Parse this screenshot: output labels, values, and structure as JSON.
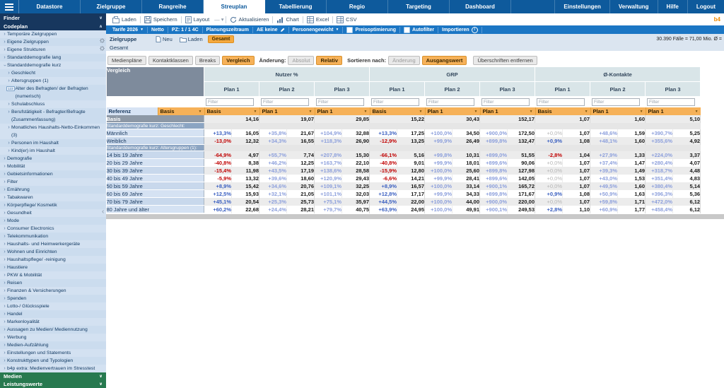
{
  "nav": {
    "tabs": [
      {
        "label": "Datastore",
        "active": false
      },
      {
        "label": "Zielgruppe",
        "active": false
      },
      {
        "label": "Rangreihe",
        "active": false
      },
      {
        "label": "Streuplan",
        "active": true
      },
      {
        "label": "Tabellierung",
        "active": false
      },
      {
        "label": "Regio",
        "active": false
      },
      {
        "label": "Targeting",
        "active": false
      },
      {
        "label": "Dashboard",
        "active": false
      }
    ],
    "right": [
      "Einstellungen",
      "Verwaltung",
      "Hilfe",
      "Logout"
    ]
  },
  "toolbar": {
    "buttons": [
      {
        "label": "Laden",
        "icon": "load-icon"
      },
      {
        "label": "Speichern",
        "icon": "save-icon"
      },
      {
        "label": "Layout",
        "icon": "layout-icon",
        "suffix": "— ▾"
      },
      {
        "label": "Aktualisieren",
        "icon": "refresh-icon"
      },
      {
        "label": "Chart",
        "icon": "chart-icon"
      },
      {
        "label": "Excel",
        "icon": "excel-icon"
      },
      {
        "label": "CSV",
        "icon": "csv-icon"
      }
    ],
    "brand": "b4"
  },
  "bluebar": {
    "items": [
      {
        "label": "Tarife 2026",
        "arrow": true
      },
      {
        "label": "Netto"
      },
      {
        "label": "PZ: 1 / 1 4C"
      },
      {
        "label": "Planungszeitraum"
      },
      {
        "label": "AE keine",
        "pencil": true
      },
      {
        "label": "Personengewicht",
        "arrow": true
      },
      {
        "label": "Preisoptimierung",
        "checkbox": true
      },
      {
        "label": "Autofilter",
        "checkbox": true
      },
      {
        "label": "Importieren",
        "info": true
      }
    ]
  },
  "zielgruppe": {
    "label": "Zielgruppe",
    "new_label": "Neu",
    "load_label": "Laden",
    "chip": "Gesamt",
    "stats": "30.390 Fälle = 71,00 Mio. Ø =",
    "current": "Gesamt"
  },
  "table_toolbar": {
    "buttons": [
      {
        "label": "Medienpläne"
      },
      {
        "label": "Kontaktklassen"
      },
      {
        "label": "Breaks"
      },
      {
        "label": "Vergleich",
        "active": true
      }
    ],
    "aenderung_label": "Änderung:",
    "aenderung_options": [
      {
        "label": "Absolut",
        "muted": true
      },
      {
        "label": "Relativ",
        "active": true
      }
    ],
    "sort_label": "Sortieren nach:",
    "sort_options": [
      {
        "label": "Änderung",
        "muted": true
      },
      {
        "label": "Ausgangswert",
        "active": true
      }
    ],
    "remove_headers": "Überschriften entfernen"
  },
  "table": {
    "corner": "Vergleich",
    "groups": [
      {
        "label": "Nutzer %"
      },
      {
        "label": "GRP"
      },
      {
        "label": "Ø-Kontakte"
      }
    ],
    "plans": [
      "Plan 1",
      "Plan 2",
      "Plan 3",
      "Plan 1",
      "Plan 2",
      "Plan 3",
      "Plan 1",
      "Plan 2",
      "Plan 3"
    ],
    "filter_placeholder": "Filter",
    "referenz_label": "Referenz",
    "referenz_main": "Basis",
    "references": [
      "Basis",
      "Plan 1",
      "Plan 1",
      "Basis",
      "Plan 1",
      "Plan 1",
      "Basis",
      "Plan 1",
      "Plan 1"
    ],
    "rows": [
      {
        "type": "basis",
        "label": "Basis",
        "values": [
          "14,16",
          "19,07",
          "29,85",
          "15,22",
          "30,43",
          "152,17",
          "1,07",
          "1,60",
          "5,10"
        ]
      },
      {
        "type": "group",
        "label": "Standarddemografie kurz: Geschlecht:"
      },
      {
        "label": "Männlich",
        "alt": false,
        "cells": [
          [
            "+13,3%",
            "16,05"
          ],
          [
            "+35,8%",
            "21,67"
          ],
          [
            "+104,9%",
            "32,88"
          ],
          [
            "+13,3%",
            "17,25"
          ],
          [
            "+100,0%",
            "34,50"
          ],
          [
            "+900,0%",
            "172,50"
          ],
          [
            "+0,0%",
            "1,07"
          ],
          [
            "+48,6%",
            "1,59"
          ],
          [
            "+390,7%",
            "5,25"
          ]
        ]
      },
      {
        "label": "Weiblich",
        "alt": true,
        "cells": [
          [
            "-13,0%",
            "12,32"
          ],
          [
            "+34,3%",
            "16,55"
          ],
          [
            "+118,3%",
            "26,90"
          ],
          [
            "-12,9%",
            "13,25"
          ],
          [
            "+99,9%",
            "26,49"
          ],
          [
            "+899,8%",
            "132,47"
          ],
          [
            "+0,9%",
            "1,08"
          ],
          [
            "+48,1%",
            "1,60"
          ],
          [
            "+355,6%",
            "4,92"
          ]
        ]
      },
      {
        "type": "group",
        "label": "Standarddemografie kurz: Altersgruppen (1):"
      },
      {
        "label": "14 bis 19 Jahre",
        "alt": true,
        "cells": [
          [
            "-64,9%",
            "4,97"
          ],
          [
            "+55,7%",
            "7,74"
          ],
          [
            "+207,8%",
            "15,30"
          ],
          [
            "-66,1%",
            "5,16"
          ],
          [
            "+99,8%",
            "10,31"
          ],
          [
            "+899,0%",
            "51,55"
          ],
          [
            "-2,8%",
            "1,04"
          ],
          [
            "+27,9%",
            "1,33"
          ],
          [
            "+224,0%",
            "3,37"
          ]
        ]
      },
      {
        "label": "20 bis 29 Jahre",
        "alt": false,
        "cells": [
          [
            "-40,8%",
            "8,38"
          ],
          [
            "+46,2%",
            "12,25"
          ],
          [
            "+163,7%",
            "22,10"
          ],
          [
            "-40,8%",
            "9,01"
          ],
          [
            "+99,9%",
            "18,01"
          ],
          [
            "+899,6%",
            "90,06"
          ],
          [
            "+0,0%",
            "1,07"
          ],
          [
            "+37,4%",
            "1,47"
          ],
          [
            "+280,4%",
            "4,07"
          ]
        ]
      },
      {
        "label": "30 bis 39 Jahre",
        "alt": true,
        "cells": [
          [
            "-15,4%",
            "11,98"
          ],
          [
            "+43,5%",
            "17,19"
          ],
          [
            "+138,6%",
            "28,58"
          ],
          [
            "-15,9%",
            "12,80"
          ],
          [
            "+100,0%",
            "25,60"
          ],
          [
            "+899,8%",
            "127,98"
          ],
          [
            "+0,0%",
            "1,07"
          ],
          [
            "+39,3%",
            "1,49"
          ],
          [
            "+318,7%",
            "4,48"
          ]
        ]
      },
      {
        "label": "40 bis 49 Jahre",
        "alt": false,
        "cells": [
          [
            "-5,9%",
            "13,32"
          ],
          [
            "+39,6%",
            "18,60"
          ],
          [
            "+120,9%",
            "29,43"
          ],
          [
            "-6,6%",
            "14,21"
          ],
          [
            "+99,9%",
            "28,41"
          ],
          [
            "+899,6%",
            "142,05"
          ],
          [
            "+0,0%",
            "1,07"
          ],
          [
            "+43,0%",
            "1,53"
          ],
          [
            "+351,4%",
            "4,83"
          ]
        ]
      },
      {
        "label": "50 bis 59 Jahre",
        "alt": true,
        "cells": [
          [
            "+8,9%",
            "15,42"
          ],
          [
            "+34,6%",
            "20,76"
          ],
          [
            "+109,1%",
            "32,25"
          ],
          [
            "+8,9%",
            "16,57"
          ],
          [
            "+100,0%",
            "33,14"
          ],
          [
            "+900,1%",
            "165,72"
          ],
          [
            "+0,0%",
            "1,07"
          ],
          [
            "+49,5%",
            "1,60"
          ],
          [
            "+380,4%",
            "5,14"
          ]
        ]
      },
      {
        "label": "60 bis 69 Jahre",
        "alt": false,
        "cells": [
          [
            "+12,5%",
            "15,93"
          ],
          [
            "+32,1%",
            "21,05"
          ],
          [
            "+101,1%",
            "32,03"
          ],
          [
            "+12,8%",
            "17,17"
          ],
          [
            "+99,9%",
            "34,33"
          ],
          [
            "+899,8%",
            "171,67"
          ],
          [
            "+0,9%",
            "1,08"
          ],
          [
            "+50,9%",
            "1,63"
          ],
          [
            "+396,3%",
            "5,36"
          ]
        ]
      },
      {
        "label": "70 bis 79 Jahre",
        "alt": true,
        "cells": [
          [
            "+45,1%",
            "20,54"
          ],
          [
            "+25,3%",
            "25,73"
          ],
          [
            "+75,1%",
            "35,97"
          ],
          [
            "+44,5%",
            "22,00"
          ],
          [
            "+100,0%",
            "44,00"
          ],
          [
            "+900,0%",
            "220,00"
          ],
          [
            "+0,0%",
            "1,07"
          ],
          [
            "+59,8%",
            "1,71"
          ],
          [
            "+472,0%",
            "6,12"
          ]
        ]
      },
      {
        "label": "80 Jahre und älter",
        "alt": false,
        "cells": [
          [
            "+60,2%",
            "22,68"
          ],
          [
            "+24,4%",
            "28,21"
          ],
          [
            "+79,7%",
            "40,75"
          ],
          [
            "+63,9%",
            "24,95"
          ],
          [
            "+100,0%",
            "49,91"
          ],
          [
            "+900,1%",
            "249,53"
          ],
          [
            "+2,8%",
            "1,10"
          ],
          [
            "+60,9%",
            "1,77"
          ],
          [
            "+458,4%",
            "6,12"
          ]
        ]
      }
    ]
  },
  "sidebar": {
    "finder": "Finder",
    "codeplan": "Codeplan",
    "items": [
      {
        "label": "Temporäre Zielgruppen",
        "lvl": 0
      },
      {
        "label": "Eigene Zielgruppen",
        "lvl": 0,
        "gear": true
      },
      {
        "label": "Eigene Strukturen",
        "lvl": 0,
        "gear": true
      },
      {
        "label": "Standarddemografie lang",
        "lvl": 0
      },
      {
        "label": "Standarddemografie kurz",
        "lvl": 0,
        "expanded": true
      },
      {
        "label": "Geschlecht",
        "lvl": 1
      },
      {
        "label": "Altersgruppen (1)",
        "lvl": 1
      },
      {
        "label": "Alter des Befragten/ der Befragten (numerisch)",
        "lvl": 1,
        "numeric": true
      },
      {
        "label": "Schulabschluss",
        "lvl": 1
      },
      {
        "label": "Berufstätigkeit - Befragter/Befragte (Zusammenfassung)",
        "lvl": 1
      },
      {
        "label": "Monatliches Haushalts-Netto-Einkommen (3)",
        "lvl": 1
      },
      {
        "label": "Personen im Haushalt",
        "lvl": 1
      },
      {
        "label": "Kind(er) im Haushalt",
        "lvl": 1
      },
      {
        "label": "Demografie",
        "lvl": 0
      },
      {
        "label": "Mobilität",
        "lvl": 0
      },
      {
        "label": "Gebietsinformationen",
        "lvl": 0
      },
      {
        "label": "Filter",
        "lvl": 0
      },
      {
        "label": "Ernährung",
        "lvl": 0
      },
      {
        "label": "Tabakwaren",
        "lvl": 0
      },
      {
        "label": "Körperpflege/ Kosmetik",
        "lvl": 0
      },
      {
        "label": "Gesundheit",
        "lvl": 0
      },
      {
        "label": "Mode",
        "lvl": 0
      },
      {
        "label": "Consumer Electronics",
        "lvl": 0
      },
      {
        "label": "Telekommunikation",
        "lvl": 0
      },
      {
        "label": "Haushalts- und Heimwerkergeräte",
        "lvl": 0
      },
      {
        "label": "Wohnen und Einrichten",
        "lvl": 0
      },
      {
        "label": "Haushaltspflege/ -reinigung",
        "lvl": 0
      },
      {
        "label": "Haustiere",
        "lvl": 0
      },
      {
        "label": "PKW & Mobilität",
        "lvl": 0
      },
      {
        "label": "Reisen",
        "lvl": 0
      },
      {
        "label": "Finanzen & Versicherungen",
        "lvl": 0
      },
      {
        "label": "Spenden",
        "lvl": 0
      },
      {
        "label": "Lotto-/ Glücksspiele",
        "lvl": 0
      },
      {
        "label": "Handel",
        "lvl": 0
      },
      {
        "label": "Markenloyalität",
        "lvl": 0
      },
      {
        "label": "Aussagen zu Medien/ Mediennutzung",
        "lvl": 0
      },
      {
        "label": "Werbung",
        "lvl": 0
      },
      {
        "label": "Medien-Aufzählung",
        "lvl": 0
      },
      {
        "label": "Einstellungen und Statements",
        "lvl": 0
      },
      {
        "label": "Konstrukttypen und Typologien",
        "lvl": 0
      },
      {
        "label": "b4p extra: Medienvertrauen im Stresstest",
        "lvl": 0
      }
    ],
    "sections": [
      "Medien",
      "Leistungswerte"
    ]
  },
  "colors": {
    "nav_blue": "#0e5a9c",
    "toolbar_blue": "#1b76c4",
    "accent_orange": "#f6b158",
    "chip_orange": "#f5a93e",
    "positive_blue": "#3a5fc0",
    "negative_red": "#c00000",
    "sidebar_header_navy": "#17375e",
    "section_green": "#27794f",
    "header_gray_blue": "#d9e5e8",
    "group_row_blue": "#8ba4c2"
  }
}
